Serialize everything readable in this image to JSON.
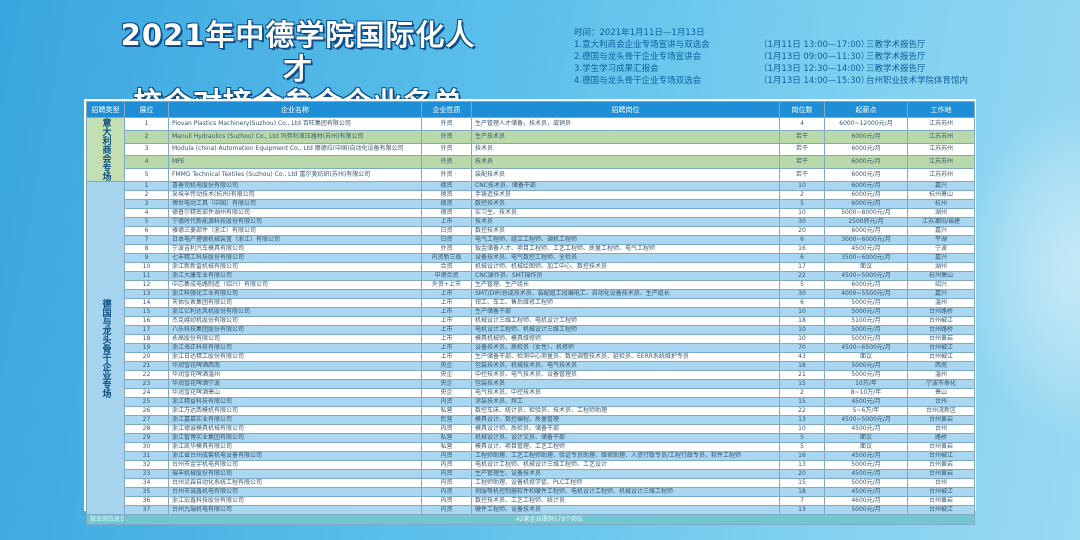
{
  "title": {
    "line1": "2021年中德学院国际化人才",
    "line2": "校企对接会参会企业名单"
  },
  "events": {
    "date": "时间：2021年1月11日—1月13日",
    "items": [
      {
        "name": "1.意大利商会企业专场宣讲与双选会",
        "time": "（1月11日 13:00—17:00）",
        "place": "三教学术报告厅"
      },
      {
        "name": "2.德国与龙头骨干企业专场宣讲会",
        "time": "（1月13日 09:00—11:30）",
        "place": "三教学术报告厅"
      },
      {
        "name": "3.学生学习成果汇报会",
        "time": "（1月13日 12:30—14:00）",
        "place": "三教学术报告厅"
      },
      {
        "name": "4.德国与龙头骨干企业专场双选会",
        "time": "（1月13日 14:00—15:30）",
        "place": "台州职业技术学院体育馆内"
      }
    ]
  },
  "table": {
    "headers": [
      "招聘类型",
      "展位",
      "企业名称",
      "企业性质",
      "招聘岗位",
      "岗位数",
      "起薪点",
      "工作地"
    ],
    "groups": [
      {
        "type": "意大利商会专场",
        "rows": [
          [
            "1",
            "Piovan Plastics Machinery(Suzhou) Co., Ltd 百旺集团有限公司",
            "外资",
            "生产管理人才储备，技术员，或销员",
            "4",
            "6000~12000元/月",
            "江苏苏州"
          ],
          [
            "2",
            "Manuli Hydraulics (Suzhou) Co., Ltd 玛努利液压器材(苏州)有限公司",
            "外资",
            "生产技术员",
            "若干",
            "6000元/月",
            "江苏苏州"
          ],
          [
            "3",
            "Modula (china) Automation Equipment Co., Ltd 摩德拉(中国)自动化设备有限公司",
            "外资",
            "技术员",
            "若干",
            "6000元/月",
            "江苏苏州"
          ],
          [
            "4",
            "MPE",
            "外资",
            "技术员",
            "若干",
            "6000元/月",
            "江苏苏州"
          ],
          [
            "5",
            "FMMG Technical Textiles (Suzhou) Co., Ltd 富尔美纺织(苏州)有限公司",
            "外资",
            "装配技术员",
            "若干",
            "6000元/月",
            "江苏苏州"
          ]
        ]
      },
      {
        "type": "德国与龙头骨干企业专场",
        "rows": [
          [
            "1",
            "喜善司机电股份有限公司",
            "德资",
            "CNC技术员、储备干部",
            "10",
            "6000元/月",
            "嘉兴"
          ],
          [
            "2",
            "采埃孚传动技术(杭州)有限公司",
            "德资",
            "手铸造技术员",
            "2",
            "6000元/月",
            "杭州萧山"
          ],
          [
            "3",
            "博世电动工具（中国）有限公司",
            "德资",
            "数控技术员",
            "5",
            "6000元/月",
            "杭州"
          ],
          [
            "4",
            "德普尔精密部件湖州有限公司",
            "德资",
            "实习生、技术员",
            "10",
            "5000~8000元/月",
            "湖州"
          ],
          [
            "5",
            "宁德时代新能源科技股份有限公司",
            "上市",
            "技术员",
            "30",
            "2500转元/月",
            "江苏溧阳/福建"
          ],
          [
            "6",
            "雅德三菱部件（浙江）有限公司",
            "日资",
            "数控技术员",
            "20",
            "6000元/月",
            "嘉兴"
          ],
          [
            "7",
            "日本电产理德机械装置（浙江）有限公司",
            "日资",
            "电气工程师、组立工程师、调机工程师",
            "6",
            "3000~6000元/月",
            "平湖"
          ],
          [
            "8",
            "宁波吉利汽车模具有限公司",
            "外资",
            "钣金储备人才、项目工程师、工艺工程师、质量工程师、电气工程师",
            "16",
            "4500元/月",
            "宁波"
          ],
          [
            "9",
            "七丰精工科技股份有限公司",
            "内资新三板",
            "设备技术员、电气数控工程师、全检员",
            "6",
            "3500~6000元/月",
            "嘉兴"
          ],
          [
            "10",
            "浙江新新雷机械有限公司",
            "合资",
            "机械设计师、机械绘图师、加工中心、数控技术员",
            "17",
            "面议",
            "湖州"
          ],
          [
            "11",
            "浙江大康车业有限公司",
            "中港合资",
            "CNC操作员、SMT操作员",
            "22",
            "4500~5000元/月",
            "杭州萧山"
          ],
          [
            "12",
            "中芯集成电路制造（绍兴）有限公司",
            "外资+上市",
            "生产管理、生产组长",
            "5",
            "6000元/月",
            "绍兴"
          ],
          [
            "13",
            "浙江科强化工业有限公司",
            "上市",
            "SMT/DIP/总成技术员、装配组工段编电工、自动化设备技术员、生产组长",
            "30",
            "4000~5500元/月",
            "嘉兴"
          ],
          [
            "14",
            "天佑仪表集团有限公司",
            "上市",
            "钳工、车工、售后维修工程师",
            "6",
            "5000元/月",
            "温州"
          ],
          [
            "15",
            "浙江亿利达风机股份有限公司",
            "上市",
            "生产储备干部",
            "10",
            "5000元/月",
            "台州路桥"
          ],
          [
            "16",
            "杰克缝纫机股份有限公司",
            "上市",
            "机械设计三维工程师、电机设计工程师",
            "18",
            "5100元/月",
            "台州椒江"
          ],
          [
            "17",
            "八乐科技集团股份有限公司",
            "上市",
            "电机设计工程师、机械设计三维工程师",
            "10",
            "5000元/月",
            "台州路桥"
          ],
          [
            "18",
            "永高股份有限公司",
            "上市",
            "模具机械师、模具维修师",
            "10",
            "5000元/月",
            "台州黄岩"
          ],
          [
            "19",
            "浙江海正科技有限公司",
            "上市",
            "设备技术员、质检员（女性）、机修师",
            "70",
            "4500~6500元/月",
            "台州椒江"
          ],
          [
            "20",
            "浙江日达精工股份有限公司",
            "上市",
            "生产储备干部、检测中心测量员、数控调整技术员、延检员、EERR系统维护专员",
            "43",
            "面议",
            "台州椒江"
          ],
          [
            "21",
            "华润雪花啤酒西南",
            "央企",
            "包装技术员、机械技术员、电气技术员",
            "18",
            "5000元/月",
            "西南"
          ],
          [
            "22",
            "华润雪花啤酒温州",
            "央企",
            "中控技术员、电气技术员、设备管理员",
            "21",
            "5000元/月",
            "温州"
          ],
          [
            "23",
            "华润雪花啤酒宁波",
            "央企",
            "包装技术员",
            "15",
            "10万/年",
            "宁波市奉化"
          ],
          [
            "24",
            "华润雪花啤酒萧山",
            "央企",
            "电气技术员、中控技术员",
            "2",
            "8~10万/年",
            "萧山"
          ],
          [
            "25",
            "浙江精益科技有限公司",
            "内资",
            "涂装技术员、焊工",
            "15",
            "4500元/月",
            "台州"
          ],
          [
            "26",
            "浙江万达西模机有限公司",
            "私营",
            "数控车床、统计员、检验员、技术员、工程师助理",
            "22",
            "5~6万/年",
            "台州湾新区"
          ],
          [
            "27",
            "浙江嘉慕实业有限公司",
            "民营",
            "模具设计、数控编程、质量管理",
            "13",
            "4500~5000元/月",
            "台州黄岩"
          ],
          [
            "28",
            "浙江德诚模具机械有限公司",
            "内资",
            "模具设计师、质检员、储备干部",
            "10",
            "4500元/月",
            "台州"
          ],
          [
            "29",
            "浙江智博实业集团有限公司",
            "私营",
            "机械设计员、设计文员、储备干部",
            "5",
            "面议",
            "路桥"
          ],
          [
            "30",
            "浙江凯华模具有限公司",
            "私营",
            "模具设计、项目管理、工艺工程师",
            "5",
            "面议",
            "台州黄岩"
          ],
          [
            "31",
            "浙江省台州成套机电设备有限公司",
            "内资",
            "工程师助理、工艺工程师助理、验证专员助理、维修助理、人资行政专员/工程行政专员、软件工程师",
            "16",
            "4500元/月",
            "台州椒江"
          ],
          [
            "32",
            "台州市金宇机电有限公司",
            "内资",
            "电机设计工程师、机械设计三维工程师、工艺设计",
            "13",
            "5000元/月",
            "台州黄岩"
          ],
          [
            "33",
            "瑞丰机械股份有限公司",
            "内资",
            "生产管理生、设备技术员",
            "20",
            "4500元/月",
            "台州黄岩"
          ],
          [
            "34",
            "台州灵霖自动化系统工程有限公司",
            "内资",
            "工程师助理、设备机修学徒、PLC工程师",
            "15",
            "5000元/月",
            "台州"
          ],
          [
            "35",
            "台州市诚鑫机电有限公司",
            "内资",
            "伺服等机控制器软件和硬件工程师、电机设计工程师、机械设计三维工程师",
            "18",
            "4500元/月",
            "台州椒江"
          ],
          [
            "36",
            "浙江宏鑫科技股份有限公司",
            "内资",
            "数控技术员、工艺工程师、统计员",
            "7",
            "4600元/月",
            "台州黄岩"
          ],
          [
            "37",
            "台州九瑞机电有限公司",
            "内资",
            "硬件工程师、设备技术员",
            "13",
            "5000元/月",
            "台州椒江"
          ]
        ]
      }
    ],
    "footer": {
      "label": "就业岗位总计",
      "total": "42家企业提供578个岗位"
    }
  }
}
